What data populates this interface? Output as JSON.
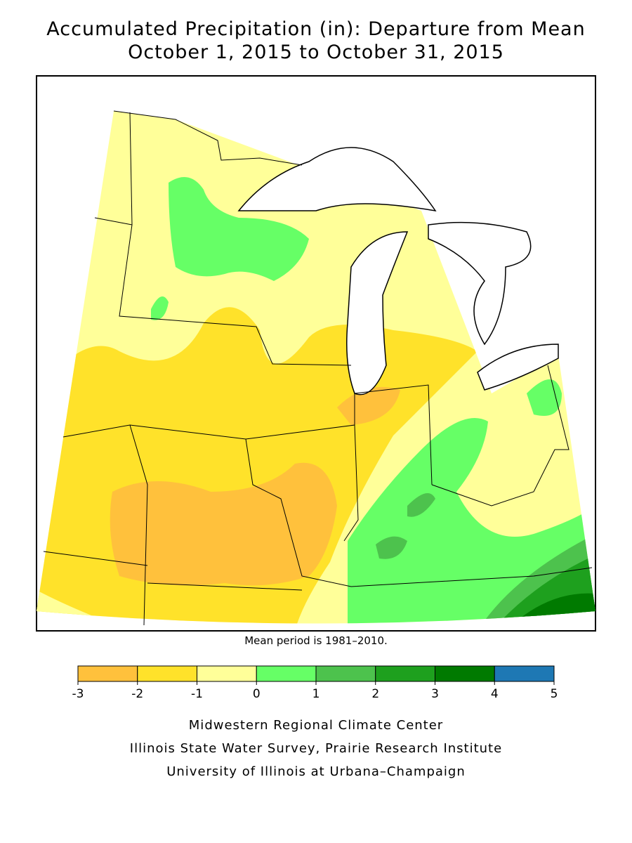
{
  "title": [
    "Accumulated Precipitation (in): Departure from Mean",
    "October 1, 2015 to October 31, 2015"
  ],
  "note": "Mean period is 1981–2010.",
  "legend": {
    "bins": [
      -3,
      -2,
      -1,
      0,
      1,
      2,
      3,
      4,
      5
    ],
    "colors": [
      "#ffc13c",
      "#ffe22a",
      "#ffff99",
      "#66ff66",
      "#4dc24d",
      "#1ea01e",
      "#007a00",
      "#1e78b4"
    ]
  },
  "credits": [
    "Midwestern Regional Climate Center",
    "Illinois State Water Survey, Prairie Research Institute",
    "University of Illinois at Urbana–Champaign"
  ]
}
